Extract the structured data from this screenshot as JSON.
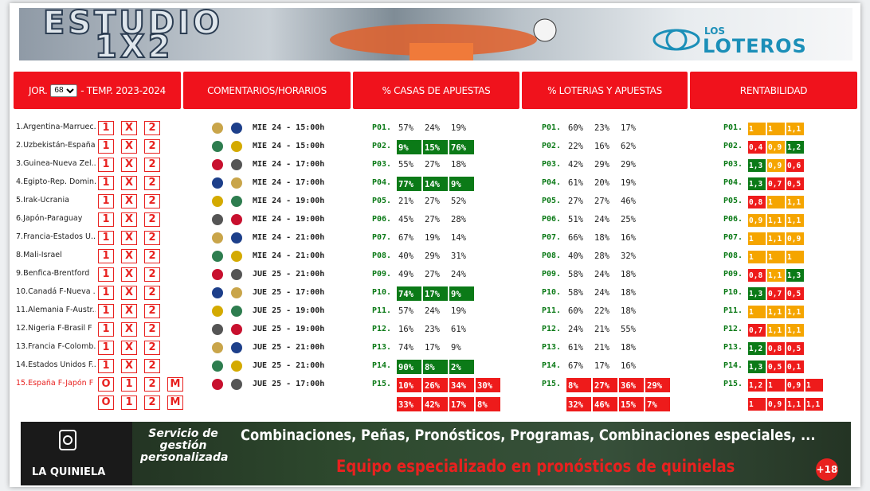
{
  "banner": {
    "title_line1": "ESTUDIO",
    "title_line2": "1X2",
    "logo_small": "LOS",
    "logo_big": "LOTEROS"
  },
  "header": {
    "jornada_label": "JOR.",
    "jornada": "68",
    "temporada": "- TEMP. 2023-2024",
    "comentarios": "COMENTARIOS/HORARIOS",
    "casas": "% CASAS DE APUESTAS",
    "loterias": "% LOTERIAS Y APUESTAS",
    "rentabilidad": "RENTABILIDAD"
  },
  "rows": [
    {
      "match": "1.Argentina-Marruec...",
      "picks": [
        "1",
        "X",
        "2"
      ],
      "time": "MIE 24 - 15:00h",
      "casas": {
        "label": "P01.",
        "values": [
          "57%",
          "24%",
          "19%"
        ]
      },
      "loterias": {
        "label": "P01.",
        "values": [
          "60%",
          "23%",
          "17%"
        ]
      },
      "rent": {
        "label": "P01.",
        "values": [
          "1",
          "1",
          "1,1"
        ],
        "colors": [
          "orange",
          "orange",
          "orange"
        ]
      }
    },
    {
      "match": "2.Uzbekistán-España",
      "picks": [
        "1",
        "X",
        "2"
      ],
      "time": "MIE 24 - 15:00h",
      "casas": {
        "label": "P02.",
        "values": [
          "9%",
          "15%",
          "76%"
        ],
        "highlight": "green"
      },
      "loterias": {
        "label": "P02.",
        "values": [
          "22%",
          "16%",
          "62%"
        ]
      },
      "rent": {
        "label": "P02.",
        "values": [
          "0,4",
          "0,9",
          "1,2"
        ],
        "colors": [
          "red",
          "orange",
          "green"
        ]
      }
    },
    {
      "match": "3.Guinea-Nueva Zel...",
      "picks": [
        "1",
        "X",
        "2"
      ],
      "time": "MIE 24 - 17:00h",
      "casas": {
        "label": "P03.",
        "values": [
          "55%",
          "27%",
          "18%"
        ]
      },
      "loterias": {
        "label": "P03.",
        "values": [
          "42%",
          "29%",
          "29%"
        ]
      },
      "rent": {
        "label": "P03.",
        "values": [
          "1,3",
          "0,9",
          "0,6"
        ],
        "colors": [
          "green",
          "orange",
          "red"
        ]
      }
    },
    {
      "match": "4.Egipto-Rep. Domin...",
      "picks": [
        "1",
        "X",
        "2"
      ],
      "time": "MIE 24 - 17:00h",
      "casas": {
        "label": "P04.",
        "values": [
          "77%",
          "14%",
          "9%"
        ],
        "highlight": "green"
      },
      "loterias": {
        "label": "P04.",
        "values": [
          "61%",
          "20%",
          "19%"
        ]
      },
      "rent": {
        "label": "P04.",
        "values": [
          "1,3",
          "0,7",
          "0,5"
        ],
        "colors": [
          "green",
          "red",
          "red"
        ]
      }
    },
    {
      "match": "5.Irak-Ucrania",
      "picks": [
        "1",
        "X",
        "2"
      ],
      "time": "MIE 24 - 19:00h",
      "casas": {
        "label": "P05.",
        "values": [
          "21%",
          "27%",
          "52%"
        ]
      },
      "loterias": {
        "label": "P05.",
        "values": [
          "27%",
          "27%",
          "46%"
        ]
      },
      "rent": {
        "label": "P05.",
        "values": [
          "0,8",
          "1",
          "1,1"
        ],
        "colors": [
          "red",
          "orange",
          "orange"
        ]
      }
    },
    {
      "match": "6.Japón-Paraguay",
      "picks": [
        "1",
        "X",
        "2"
      ],
      "time": "MIE 24 - 19:00h",
      "casas": {
        "label": "P06.",
        "values": [
          "45%",
          "27%",
          "28%"
        ]
      },
      "loterias": {
        "label": "P06.",
        "values": [
          "51%",
          "24%",
          "25%"
        ]
      },
      "rent": {
        "label": "P06.",
        "values": [
          "0,9",
          "1,1",
          "1,1"
        ],
        "colors": [
          "orange",
          "orange",
          "orange"
        ]
      }
    },
    {
      "match": "7.Francia-Estados U...",
      "picks": [
        "1",
        "X",
        "2"
      ],
      "time": "MIE 24 - 21:00h",
      "casas": {
        "label": "P07.",
        "values": [
          "67%",
          "19%",
          "14%"
        ]
      },
      "loterias": {
        "label": "P07.",
        "values": [
          "66%",
          "18%",
          "16%"
        ]
      },
      "rent": {
        "label": "P07.",
        "values": [
          "1",
          "1,1",
          "0,9"
        ],
        "colors": [
          "orange",
          "orange",
          "orange"
        ]
      }
    },
    {
      "match": "8.Mali-Israel",
      "picks": [
        "1",
        "X",
        "2"
      ],
      "time": "MIE 24 - 21:00h",
      "casas": {
        "label": "P08.",
        "values": [
          "40%",
          "29%",
          "31%"
        ]
      },
      "loterias": {
        "label": "P08.",
        "values": [
          "40%",
          "28%",
          "32%"
        ]
      },
      "rent": {
        "label": "P08.",
        "values": [
          "1",
          "1",
          "1"
        ],
        "colors": [
          "orange",
          "orange",
          "orange"
        ]
      }
    },
    {
      "match": "9.Benfica-Brentford",
      "picks": [
        "1",
        "X",
        "2"
      ],
      "time": "JUE 25 - 21:00h",
      "casas": {
        "label": "P09.",
        "values": [
          "49%",
          "27%",
          "24%"
        ]
      },
      "loterias": {
        "label": "P09.",
        "values": [
          "58%",
          "24%",
          "18%"
        ]
      },
      "rent": {
        "label": "P09.",
        "values": [
          "0,8",
          "1,1",
          "1,3"
        ],
        "colors": [
          "red",
          "orange",
          "green"
        ]
      }
    },
    {
      "match": "10.Canadá F-Nueva ...",
      "picks": [
        "1",
        "X",
        "2"
      ],
      "time": "JUE 25 - 17:00h",
      "casas": {
        "label": "P10.",
        "values": [
          "74%",
          "17%",
          "9%"
        ],
        "highlight": "green"
      },
      "loterias": {
        "label": "P10.",
        "values": [
          "58%",
          "24%",
          "18%"
        ]
      },
      "rent": {
        "label": "P10.",
        "values": [
          "1,3",
          "0,7",
          "0,5"
        ],
        "colors": [
          "green",
          "red",
          "red"
        ]
      }
    },
    {
      "match": "11.Alemania F-Austr...",
      "picks": [
        "1",
        "X",
        "2"
      ],
      "time": "JUE 25 - 19:00h",
      "casas": {
        "label": "P11.",
        "values": [
          "57%",
          "24%",
          "19%"
        ]
      },
      "loterias": {
        "label": "P11.",
        "values": [
          "60%",
          "22%",
          "18%"
        ]
      },
      "rent": {
        "label": "P11.",
        "values": [
          "1",
          "1,1",
          "1,1"
        ],
        "colors": [
          "orange",
          "orange",
          "orange"
        ]
      }
    },
    {
      "match": "12.Nigeria F-Brasil F",
      "picks": [
        "1",
        "X",
        "2"
      ],
      "time": "JUE 25 - 19:00h",
      "casas": {
        "label": "P12.",
        "values": [
          "16%",
          "23%",
          "61%"
        ]
      },
      "loterias": {
        "label": "P12.",
        "values": [
          "24%",
          "21%",
          "55%"
        ]
      },
      "rent": {
        "label": "P12.",
        "values": [
          "0,7",
          "1,1",
          "1,1"
        ],
        "colors": [
          "red",
          "orange",
          "orange"
        ]
      }
    },
    {
      "match": "13.Francia F-Colomb...",
      "picks": [
        "1",
        "X",
        "2"
      ],
      "time": "JUE 25 - 21:00h",
      "casas": {
        "label": "P13.",
        "values": [
          "74%",
          "17%",
          "9%"
        ]
      },
      "loterias": {
        "label": "P13.",
        "values": [
          "61%",
          "21%",
          "18%"
        ]
      },
      "rent": {
        "label": "P13.",
        "values": [
          "1,2",
          "0,8",
          "0,5"
        ],
        "colors": [
          "green",
          "red",
          "red"
        ]
      }
    },
    {
      "match": "14.Estados Unidos F...",
      "picks": [
        "1",
        "X",
        "2"
      ],
      "time": "JUE 25 - 21:00h",
      "casas": {
        "label": "P14.",
        "values": [
          "90%",
          "8%",
          "2%"
        ],
        "highlight": "green"
      },
      "loterias": {
        "label": "P14.",
        "values": [
          "67%",
          "17%",
          "16%"
        ]
      },
      "rent": {
        "label": "P14.",
        "values": [
          "1,3",
          "0,5",
          "0,1"
        ],
        "colors": [
          "green",
          "red",
          "red"
        ]
      }
    },
    {
      "match": "15.España F-Japón F",
      "match_color": "#e8211f",
      "picks": [
        "O",
        "1",
        "2",
        "M"
      ],
      "picks2": [
        "O",
        "1",
        "2",
        "M"
      ],
      "time": "JUE 25 - 17:00h",
      "casas": {
        "label": "P15.",
        "values": [
          "10%",
          "26%",
          "34%",
          "30%"
        ],
        "values2": [
          "33%",
          "42%",
          "17%",
          "8%"
        ],
        "highlight": "red"
      },
      "loterias": {
        "label": "P15.",
        "values": [
          "8%",
          "27%",
          "36%",
          "29%"
        ],
        "values2": [
          "32%",
          "46%",
          "15%",
          "7%"
        ],
        "highlight": "red"
      },
      "rent": {
        "label": "P15.",
        "values": [
          "1,2",
          "1",
          "0,9",
          "1"
        ],
        "values2": [
          "1",
          "0,9",
          "1,1",
          "1,1"
        ],
        "colors": [
          "red",
          "red",
          "red",
          "red"
        ],
        "colors2": [
          "red",
          "red",
          "red",
          "red"
        ]
      }
    }
  ],
  "footer": {
    "brand": "LA QUINIELA",
    "service": "Servicio de gestión personalizada",
    "line1": "Combinaciones, Peñas, Pronósticos, Programas, Combinaciones especiales, ...",
    "line2": "Equipo especializado en pronósticos de quinielas",
    "age": "+18"
  }
}
